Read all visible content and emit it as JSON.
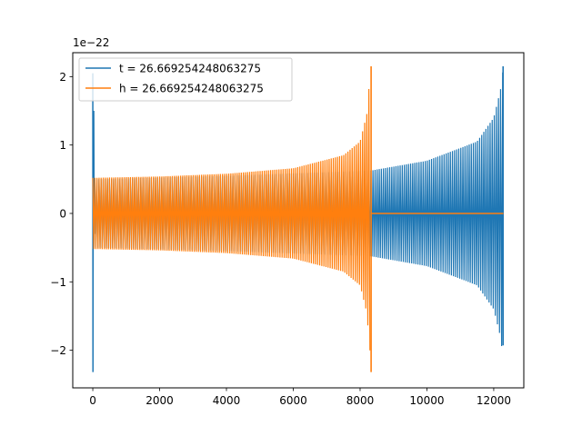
{
  "chart_data": {
    "type": "line",
    "title": "",
    "xlabel": "",
    "ylabel": "",
    "offset_text": "1e−22",
    "xlim": [
      -600,
      12900
    ],
    "ylim": [
      -2.55,
      2.35
    ],
    "x_ticks": [
      0,
      2000,
      4000,
      6000,
      8000,
      10000,
      12000
    ],
    "x_tick_labels": [
      "0",
      "2000",
      "4000",
      "6000",
      "8000",
      "10000",
      "12000"
    ],
    "y_ticks": [
      -2,
      -1,
      0,
      1,
      2
    ],
    "y_tick_labels": [
      "−2",
      "−1",
      "0",
      "1",
      "2"
    ],
    "grid": false,
    "legend_position": "upper-left",
    "series": [
      {
        "name": "t = 26.669254248063275",
        "color": "#1f77b4",
        "x_start": 0,
        "x_end": 12290,
        "start_spike": {
          "x": [
            0,
            5,
            12,
            20,
            28,
            40,
            60
          ],
          "y": [
            2.05,
            -2.32,
            0.7,
            -0.15,
            1.5,
            -0.3,
            0.5
          ]
        },
        "body_amplitude": [
          [
            60,
            0.5
          ],
          [
            4000,
            0.55
          ],
          [
            8000,
            0.62
          ],
          [
            8360,
            0.63
          ],
          [
            10000,
            0.77
          ],
          [
            11500,
            1.05
          ],
          [
            12000,
            1.4
          ],
          [
            12200,
            1.8
          ],
          [
            12290,
            2.15
          ]
        ],
        "end_values": {
          "max": 2.15,
          "min": -1.93
        }
      },
      {
        "name": "h = 26.669254248063275",
        "color": "#ff7f0e",
        "x_start": 0,
        "x_end": 12290,
        "body_amplitude": [
          [
            0,
            0.52
          ],
          [
            2000,
            0.54
          ],
          [
            4000,
            0.58
          ],
          [
            6000,
            0.66
          ],
          [
            7500,
            0.85
          ],
          [
            8000,
            1.05
          ],
          [
            8200,
            1.45
          ],
          [
            8320,
            2.15
          ]
        ],
        "end_values": {
          "max": 2.15,
          "min": -2.32
        },
        "flat_after": 8360,
        "flat_value": 0
      }
    ]
  }
}
